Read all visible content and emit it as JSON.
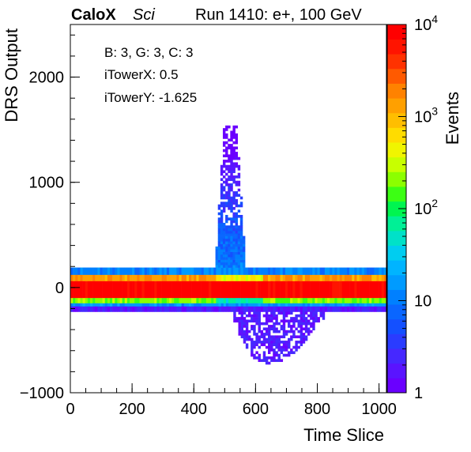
{
  "header": {
    "experiment": "CaloX",
    "detector": "Sci",
    "run_info": "Run 1410: e+, 100 GeV"
  },
  "annotations": {
    "line1": "B: 3, G: 3, C: 3",
    "line2": "iTowerX: 0.5",
    "line3": "iTowerY: -1.625"
  },
  "chart_data": {
    "type": "heatmap",
    "title": "",
    "xlabel": "Time Slice",
    "ylabel": "DRS Output",
    "zlabel": "Events",
    "xlim": [
      0,
      1024
    ],
    "ylim": [
      -1000,
      2500
    ],
    "zlim": [
      1,
      10000
    ],
    "z_log_scale": true,
    "x_ticks": [
      0,
      200,
      400,
      600,
      800,
      1000
    ],
    "x_tick_labels": [
      "0",
      "200",
      "400",
      "600",
      "800",
      "1000"
    ],
    "y_ticks": [
      -1000,
      0,
      1000,
      2000
    ],
    "y_tick_labels": [
      "−1000",
      "0",
      "1000",
      "2000"
    ],
    "z_ticks": [
      1,
      10,
      100,
      1000,
      10000
    ],
    "z_tick_labels": [
      "1",
      "10",
      "10^2",
      "10^3",
      "10^4"
    ],
    "grid": false,
    "colormap": [
      "#6a00ff",
      "#5a14ff",
      "#4628ff",
      "#2a3cff",
      "#1450ff",
      "#0a66ff",
      "#0080ff",
      "#009bff",
      "#00b4ff",
      "#00cdf0",
      "#00e1c8",
      "#00f096",
      "#00f550",
      "#3cff14",
      "#8cff00",
      "#c8ff00",
      "#f0f500",
      "#ffdc00",
      "#ffbe00",
      "#ffa000",
      "#ff8200",
      "#ff5a00",
      "#ff3200",
      "#ff1400",
      "#ff0000"
    ],
    "bands": [
      {
        "ymin": 120,
        "ymax": 190,
        "counts": 12
      },
      {
        "ymin": 60,
        "ymax": 120,
        "counts": 1500
      },
      {
        "ymin": -100,
        "ymax": 60,
        "counts": 10000
      },
      {
        "ymin": -150,
        "ymax": -100,
        "counts": 200
      },
      {
        "ymin": -180,
        "ymax": -150,
        "counts": 15
      },
      {
        "ymin": -230,
        "ymax": -180,
        "counts": 2
      }
    ],
    "spike": {
      "x_range": [
        470,
        560
      ],
      "y_max": 1520,
      "base_counts": 10,
      "tip_counts": 1
    },
    "negative_lobe": {
      "x_range": [
        520,
        830
      ],
      "y_min": -720,
      "counts": 1
    }
  }
}
